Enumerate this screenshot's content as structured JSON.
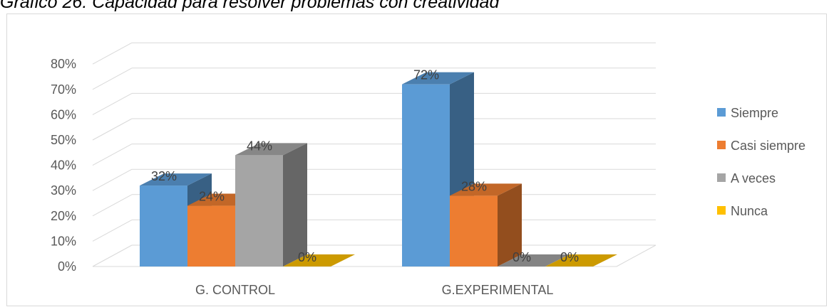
{
  "chart_data": {
    "type": "bar",
    "title": "Gráfico 26: Capacidad para resolver problemas con creatividad",
    "categories": [
      "G. CONTROL",
      "G.EXPERIMENTAL"
    ],
    "series": [
      {
        "name": "Siempre",
        "values": [
          32,
          72
        ],
        "labels": [
          "32%",
          "72%"
        ],
        "color": "#5b9bd5"
      },
      {
        "name": "Casi siempre",
        "values": [
          24,
          28
        ],
        "labels": [
          "24%",
          "28%"
        ],
        "color": "#ed7d31"
      },
      {
        "name": "A veces",
        "values": [
          44,
          0
        ],
        "labels": [
          "44%",
          "0%"
        ],
        "color": "#a5a5a5"
      },
      {
        "name": "Nunca",
        "values": [
          0,
          0
        ],
        "labels": [
          "0%",
          "0%"
        ],
        "color": "#ffc000"
      }
    ],
    "ylim": [
      0,
      80
    ],
    "yticks": [
      "0%",
      "10%",
      "20%",
      "30%",
      "40%",
      "50%",
      "60%",
      "70%",
      "80%"
    ],
    "grid": true,
    "legend": "right",
    "style": "3d-clustered-column"
  }
}
